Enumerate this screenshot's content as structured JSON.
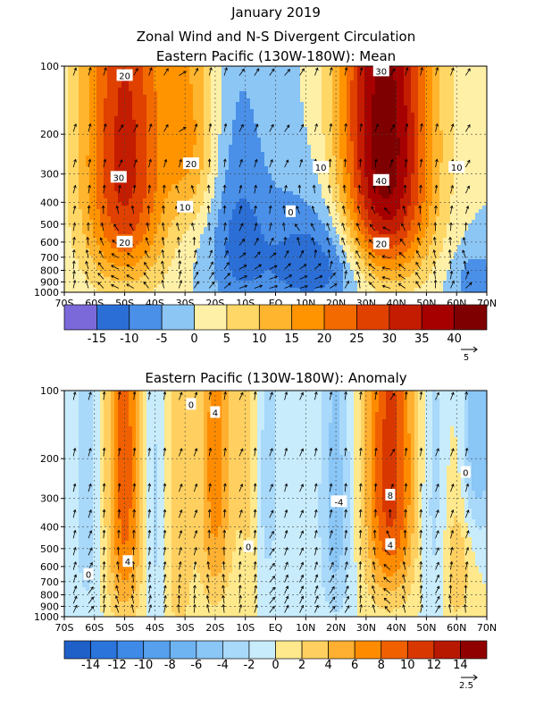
{
  "page": {
    "title_line1": "January 2019",
    "title_line2": "Zonal Wind and N-S Divergent Circulation"
  },
  "chart_data": [
    {
      "type": "heatmap",
      "title": "Eastern Pacific (130W-180W): Mean",
      "x_ticks": [
        "70S",
        "60S",
        "50S",
        "40S",
        "30S",
        "20S",
        "10S",
        "EQ",
        "10N",
        "20N",
        "30N",
        "40N",
        "50N",
        "60N",
        "70N"
      ],
      "y_ticks": [
        "100",
        "200",
        "300",
        "400",
        "500",
        "600",
        "700",
        "800",
        "900",
        "1000"
      ],
      "y_pressure": [
        100,
        200,
        300,
        400,
        500,
        600,
        700,
        800,
        900,
        1000
      ],
      "ylim": [
        1000,
        100
      ],
      "xlim": [
        -70,
        70
      ],
      "colorbar_levels": [
        -20,
        -15,
        -10,
        -5,
        0,
        5,
        10,
        15,
        20,
        25,
        30,
        35,
        40,
        45
      ],
      "colorbar_labels": [
        "-15",
        "-10",
        "-5",
        "0",
        "5",
        "10",
        "15",
        "20",
        "25",
        "30",
        "35",
        "40"
      ],
      "colorbar_colors": [
        "#7b68d9",
        "#2b6fd6",
        "#4a90e8",
        "#8cc6f5",
        "#fff0a8",
        "#ffd766",
        "#ffb52e",
        "#ff9400",
        "#f26a00",
        "#e04000",
        "#c41c00",
        "#a60000",
        "#7f0000"
      ],
      "vector_ref_label": "5",
      "contour_labels": [
        {
          "text": "20",
          "lat": -50,
          "p": 110
        },
        {
          "text": "30",
          "lat": -52,
          "p": 310
        },
        {
          "text": "20",
          "lat": -50,
          "p": 600
        },
        {
          "text": "20",
          "lat": -28,
          "p": 270
        },
        {
          "text": "10",
          "lat": -30,
          "p": 420
        },
        {
          "text": "30",
          "lat": 35,
          "p": 105
        },
        {
          "text": "40",
          "lat": 35,
          "p": 320
        },
        {
          "text": "10",
          "lat": 15,
          "p": 280
        },
        {
          "text": "10",
          "lat": 60,
          "p": 280
        },
        {
          "text": "0",
          "lat": 5,
          "p": 440
        },
        {
          "text": "20",
          "lat": 35,
          "p": 610
        }
      ],
      "features": [
        {
          "lat": -50,
          "p": 260,
          "amp": 32,
          "sx": 10,
          "sp": 420
        },
        {
          "lat": -28,
          "p": 200,
          "amp": 14,
          "sx": 6,
          "sp": 180
        },
        {
          "lat": 36,
          "p": 230,
          "amp": 44,
          "sx": 11,
          "sp": 400
        },
        {
          "lat": -12,
          "p": 620,
          "amp": -12,
          "sx": 7,
          "sp": 380
        },
        {
          "lat": 6,
          "p": 750,
          "amp": -10,
          "sx": 8,
          "sp": 300
        },
        {
          "lat": 20,
          "p": 720,
          "amp": -12,
          "sx": 8,
          "sp": 300
        },
        {
          "lat": 66,
          "p": 880,
          "amp": -8,
          "sx": 6,
          "sp": 200
        }
      ]
    },
    {
      "type": "heatmap",
      "title": "Eastern Pacific (130W-180W): Anomaly",
      "x_ticks": [
        "70S",
        "60S",
        "50S",
        "40S",
        "30S",
        "20S",
        "10S",
        "EQ",
        "10N",
        "20N",
        "30N",
        "40N",
        "50N",
        "60N",
        "70N"
      ],
      "y_ticks": [
        "100",
        "200",
        "300",
        "400",
        "500",
        "600",
        "700",
        "800",
        "900",
        "1000"
      ],
      "y_pressure": [
        100,
        200,
        300,
        400,
        500,
        600,
        700,
        800,
        900,
        1000
      ],
      "ylim": [
        1000,
        100
      ],
      "xlim": [
        -70,
        70
      ],
      "colorbar_levels": [
        -16,
        -14,
        -12,
        -10,
        -8,
        -6,
        -4,
        -2,
        0,
        2,
        4,
        6,
        8,
        10,
        12,
        14,
        16
      ],
      "colorbar_labels": [
        "-14",
        "-12",
        "-10",
        "-8",
        "-6",
        "-4",
        "-2",
        "0",
        "2",
        "4",
        "6",
        "8",
        "10",
        "12",
        "14"
      ],
      "colorbar_colors": [
        "#1f5fc8",
        "#2b74dc",
        "#3f8ae6",
        "#56a0ee",
        "#6fb4f2",
        "#8ac6f6",
        "#a8d8fa",
        "#c8ecfc",
        "#ffe98c",
        "#ffd060",
        "#ffb030",
        "#ff8c00",
        "#f06000",
        "#d83800",
        "#b81800",
        "#900000"
      ],
      "vector_ref_label": "2.5",
      "contour_labels": [
        {
          "text": "0",
          "lat": -28,
          "p": 115
        },
        {
          "text": "4",
          "lat": -20,
          "p": 125
        },
        {
          "text": "-4",
          "lat": 21,
          "p": 310
        },
        {
          "text": "8",
          "lat": 38,
          "p": 290
        },
        {
          "text": "4",
          "lat": 38,
          "p": 480
        },
        {
          "text": "0",
          "lat": -9,
          "p": 490
        },
        {
          "text": "4",
          "lat": -49,
          "p": 570
        },
        {
          "text": "0",
          "lat": -62,
          "p": 650
        },
        {
          "text": "0",
          "lat": 63,
          "p": 230
        }
      ],
      "features": [
        {
          "lat": -50,
          "p": 240,
          "amp": 9,
          "sx": 4.5,
          "sp": 500
        },
        {
          "lat": -20,
          "p": 220,
          "amp": 7,
          "sx": 4,
          "sp": 420
        },
        {
          "lat": 38,
          "p": 240,
          "amp": 11,
          "sx": 6,
          "sp": 380
        },
        {
          "lat": -32,
          "p": 420,
          "amp": 4,
          "sx": 3,
          "sp": 600
        },
        {
          "lat": -8,
          "p": 220,
          "amp": 4,
          "sx": 3,
          "sp": 350
        },
        {
          "lat": 60,
          "p": 600,
          "amp": 4,
          "sx": 3,
          "sp": 300
        },
        {
          "lat": -62,
          "p": 350,
          "amp": -3,
          "sx": 4,
          "sp": 500
        },
        {
          "lat": -40,
          "p": 350,
          "amp": -3,
          "sx": 3,
          "sp": 500
        },
        {
          "lat": -4,
          "p": 250,
          "amp": -4,
          "sx": 3.5,
          "sp": 350
        },
        {
          "lat": 20,
          "p": 350,
          "amp": -5,
          "sx": 4,
          "sp": 450
        },
        {
          "lat": 52,
          "p": 300,
          "amp": -3,
          "sx": 3.5,
          "sp": 450
        },
        {
          "lat": 67,
          "p": 150,
          "amp": -6,
          "sx": 4,
          "sp": 180
        }
      ]
    }
  ]
}
